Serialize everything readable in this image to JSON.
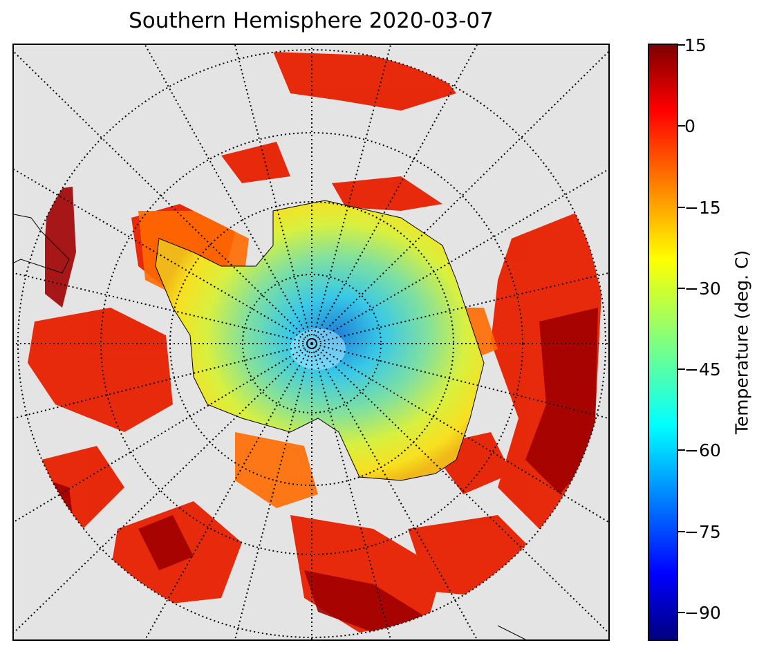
{
  "title": "Southern Hemisphere 2020-03-07",
  "colorbar": {
    "label": "Temperature (deg. C)",
    "min": -95,
    "max": 15,
    "ticks": [
      "15",
      "0",
      "−15",
      "−30",
      "−45",
      "−60",
      "−75",
      "−90"
    ],
    "tick_values": [
      15,
      0,
      -15,
      -30,
      -45,
      -60,
      -75,
      -90
    ],
    "colormap": [
      "#00007f",
      "#0000ff",
      "#007fff",
      "#00ffff",
      "#7fff7f",
      "#ffff00",
      "#ff7f00",
      "#ff0000",
      "#7f0000"
    ]
  },
  "map": {
    "projection": "south polar stereographic",
    "background_color": "#e4e4e4",
    "graticule": "dotted"
  }
}
